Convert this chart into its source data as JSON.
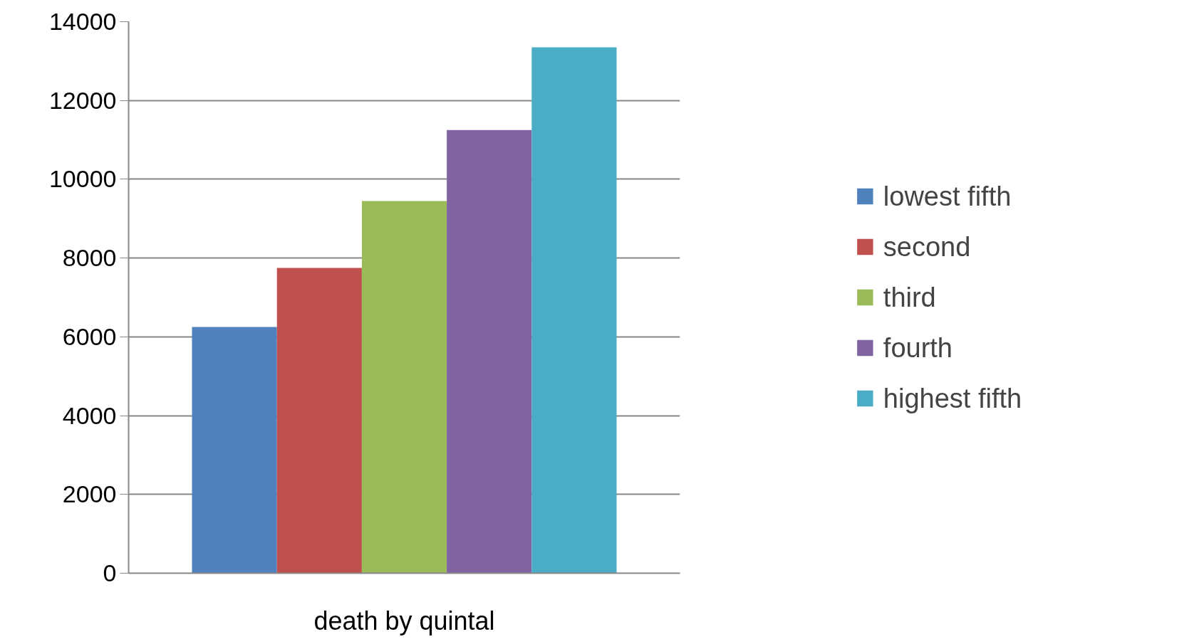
{
  "chart_data": {
    "type": "bar",
    "xlabel": null,
    "categories": [
      "death by quintal"
    ],
    "series": [
      {
        "name": "lowest fifth",
        "color": "#4f81bd",
        "values": [
          6250
        ]
      },
      {
        "name": "second",
        "color": "#c0504d",
        "values": [
          7750
        ]
      },
      {
        "name": "third",
        "color": "#9bbb59",
        "values": [
          9450
        ]
      },
      {
        "name": "fourth",
        "color": "#8064a2",
        "values": [
          11250
        ]
      },
      {
        "name": "highest fifth",
        "color": "#4bacc6",
        "values": [
          13350
        ]
      }
    ],
    "ylim": [
      0,
      14000
    ],
    "yticks": [
      0,
      2000,
      4000,
      6000,
      8000,
      10000,
      12000,
      14000
    ],
    "grid": "y",
    "legend": "right"
  }
}
